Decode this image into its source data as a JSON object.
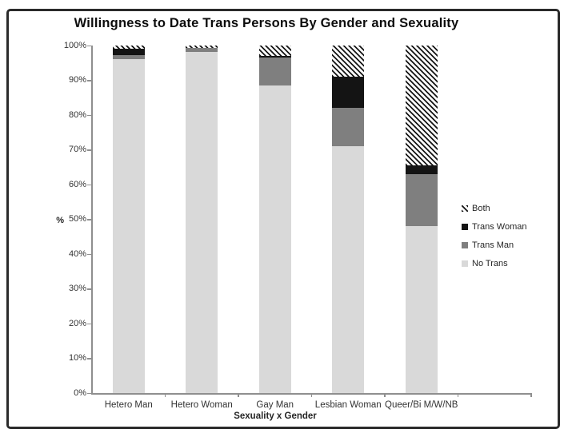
{
  "title": "Willingness to Date Trans Persons By Gender and Sexuality",
  "chart_data": {
    "type": "bar",
    "stacked": true,
    "title": "Willingness to Date Trans Persons By Gender and Sexuality",
    "xlabel": "Sexuality x Gender",
    "ylabel": "%",
    "ylim": [
      0,
      100
    ],
    "grid": false,
    "legend_position": "right",
    "categories": [
      "Hetero Man",
      "Hetero Woman",
      "Gay Man",
      "Lesbian Woman",
      "Queer/Bi M/W/NB"
    ],
    "series": [
      {
        "name": "No Trans",
        "color": "#d9d9d9",
        "values": [
          96.0,
          98.2,
          88.5,
          71.0,
          48.0
        ]
      },
      {
        "name": "Trans Man",
        "color": "#7f7f7f",
        "values": [
          1.2,
          1.0,
          8.0,
          11.0,
          15.0
        ]
      },
      {
        "name": "Trans Woman",
        "color": "#141414",
        "values": [
          1.8,
          0,
          0.5,
          9.0,
          2.5
        ]
      },
      {
        "name": "Both",
        "color": "#1a1a1a",
        "pattern": "diagonal-stripes",
        "values": [
          1.0,
          0.8,
          3.0,
          9.0,
          34.5
        ]
      }
    ],
    "ytick_labels": [
      "0%",
      "10%",
      "20%",
      "30%",
      "40%",
      "50%",
      "60%",
      "70%",
      "80%",
      "90%",
      "100%"
    ],
    "legend": [
      "Both",
      "Trans Woman",
      "Trans Man",
      "No Trans"
    ]
  }
}
